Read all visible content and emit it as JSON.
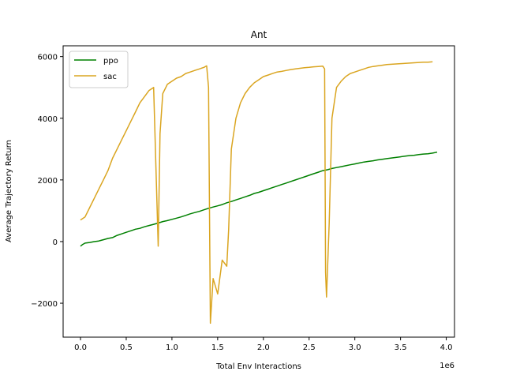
{
  "chart_data": {
    "type": "line",
    "title": "Ant",
    "xlabel": "Total Env Interactions",
    "ylabel": "Average Trajectory Return",
    "x_offset_label": "1e6",
    "xlim": [
      -0.19,
      4.09
    ],
    "ylim": [
      -3100,
      6350
    ],
    "x_ticks": [
      0.0,
      0.5,
      1.0,
      1.5,
      2.0,
      2.5,
      3.0,
      3.5,
      4.0
    ],
    "x_tick_labels": [
      "0.0",
      "0.5",
      "1.0",
      "1.5",
      "2.0",
      "2.5",
      "3.0",
      "3.5",
      "4.0"
    ],
    "y_ticks": [
      -2000,
      0,
      2000,
      4000,
      6000
    ],
    "y_tick_labels": [
      "−2000",
      "0",
      "2000",
      "4000",
      "6000"
    ],
    "grid": false,
    "legend_position": "top-left",
    "series": [
      {
        "name": "ppo",
        "color": "#008000",
        "points": [
          [
            0.0,
            -150
          ],
          [
            0.02,
            -100
          ],
          [
            0.05,
            -50
          ],
          [
            0.1,
            -30
          ],
          [
            0.15,
            0
          ],
          [
            0.2,
            20
          ],
          [
            0.25,
            60
          ],
          [
            0.3,
            100
          ],
          [
            0.35,
            130
          ],
          [
            0.4,
            200
          ],
          [
            0.45,
            250
          ],
          [
            0.5,
            300
          ],
          [
            0.55,
            350
          ],
          [
            0.6,
            400
          ],
          [
            0.65,
            430
          ],
          [
            0.7,
            480
          ],
          [
            0.75,
            520
          ],
          [
            0.8,
            560
          ],
          [
            0.85,
            600
          ],
          [
            0.9,
            650
          ],
          [
            0.95,
            680
          ],
          [
            1.0,
            720
          ],
          [
            1.05,
            760
          ],
          [
            1.1,
            800
          ],
          [
            1.15,
            850
          ],
          [
            1.2,
            900
          ],
          [
            1.25,
            940
          ],
          [
            1.3,
            980
          ],
          [
            1.35,
            1030
          ],
          [
            1.4,
            1080
          ],
          [
            1.45,
            1120
          ],
          [
            1.5,
            1160
          ],
          [
            1.55,
            1200
          ],
          [
            1.6,
            1260
          ],
          [
            1.65,
            1300
          ],
          [
            1.7,
            1350
          ],
          [
            1.75,
            1400
          ],
          [
            1.8,
            1450
          ],
          [
            1.85,
            1500
          ],
          [
            1.9,
            1560
          ],
          [
            1.95,
            1600
          ],
          [
            2.0,
            1650
          ],
          [
            2.05,
            1700
          ],
          [
            2.1,
            1750
          ],
          [
            2.15,
            1800
          ],
          [
            2.2,
            1850
          ],
          [
            2.25,
            1900
          ],
          [
            2.3,
            1950
          ],
          [
            2.35,
            2000
          ],
          [
            2.4,
            2050
          ],
          [
            2.45,
            2100
          ],
          [
            2.5,
            2150
          ],
          [
            2.55,
            2200
          ],
          [
            2.6,
            2250
          ],
          [
            2.65,
            2300
          ],
          [
            2.7,
            2330
          ],
          [
            2.75,
            2370
          ],
          [
            2.8,
            2400
          ],
          [
            2.85,
            2430
          ],
          [
            2.9,
            2460
          ],
          [
            2.95,
            2490
          ],
          [
            3.0,
            2520
          ],
          [
            3.05,
            2550
          ],
          [
            3.1,
            2580
          ],
          [
            3.15,
            2600
          ],
          [
            3.2,
            2620
          ],
          [
            3.25,
            2650
          ],
          [
            3.3,
            2670
          ],
          [
            3.35,
            2690
          ],
          [
            3.4,
            2710
          ],
          [
            3.45,
            2730
          ],
          [
            3.5,
            2750
          ],
          [
            3.55,
            2770
          ],
          [
            3.6,
            2790
          ],
          [
            3.65,
            2800
          ],
          [
            3.7,
            2820
          ],
          [
            3.75,
            2840
          ],
          [
            3.8,
            2850
          ],
          [
            3.85,
            2870
          ],
          [
            3.9,
            2900
          ]
        ]
      },
      {
        "name": "sac",
        "color": "#DAA520",
        "points": [
          [
            0.0,
            700
          ],
          [
            0.05,
            800
          ],
          [
            0.1,
            1100
          ],
          [
            0.15,
            1400
          ],
          [
            0.2,
            1700
          ],
          [
            0.25,
            2000
          ],
          [
            0.3,
            2300
          ],
          [
            0.35,
            2700
          ],
          [
            0.4,
            3000
          ],
          [
            0.45,
            3300
          ],
          [
            0.5,
            3600
          ],
          [
            0.55,
            3900
          ],
          [
            0.6,
            4200
          ],
          [
            0.65,
            4500
          ],
          [
            0.7,
            4700
          ],
          [
            0.75,
            4900
          ],
          [
            0.8,
            5000
          ],
          [
            0.85,
            -150
          ],
          [
            0.87,
            3500
          ],
          [
            0.9,
            4800
          ],
          [
            0.95,
            5100
          ],
          [
            1.0,
            5200
          ],
          [
            1.05,
            5300
          ],
          [
            1.1,
            5350
          ],
          [
            1.15,
            5450
          ],
          [
            1.2,
            5500
          ],
          [
            1.25,
            5550
          ],
          [
            1.3,
            5600
          ],
          [
            1.35,
            5650
          ],
          [
            1.38,
            5700
          ],
          [
            1.4,
            5000
          ],
          [
            1.42,
            -2650
          ],
          [
            1.45,
            -1200
          ],
          [
            1.5,
            -1700
          ],
          [
            1.55,
            -600
          ],
          [
            1.6,
            -800
          ],
          [
            1.62,
            400
          ],
          [
            1.65,
            3000
          ],
          [
            1.7,
            4000
          ],
          [
            1.75,
            4500
          ],
          [
            1.8,
            4800
          ],
          [
            1.85,
            5000
          ],
          [
            1.9,
            5150
          ],
          [
            1.95,
            5250
          ],
          [
            2.0,
            5350
          ],
          [
            2.05,
            5400
          ],
          [
            2.1,
            5450
          ],
          [
            2.15,
            5500
          ],
          [
            2.2,
            5520
          ],
          [
            2.25,
            5550
          ],
          [
            2.3,
            5580
          ],
          [
            2.35,
            5600
          ],
          [
            2.4,
            5620
          ],
          [
            2.45,
            5640
          ],
          [
            2.5,
            5650
          ],
          [
            2.55,
            5670
          ],
          [
            2.6,
            5680
          ],
          [
            2.65,
            5690
          ],
          [
            2.67,
            5600
          ],
          [
            2.68,
            -1000
          ],
          [
            2.69,
            -1800
          ],
          [
            2.72,
            600
          ],
          [
            2.75,
            4000
          ],
          [
            2.8,
            5000
          ],
          [
            2.85,
            5200
          ],
          [
            2.9,
            5350
          ],
          [
            2.95,
            5450
          ],
          [
            3.0,
            5500
          ],
          [
            3.05,
            5550
          ],
          [
            3.1,
            5600
          ],
          [
            3.15,
            5650
          ],
          [
            3.2,
            5680
          ],
          [
            3.25,
            5700
          ],
          [
            3.3,
            5720
          ],
          [
            3.35,
            5740
          ],
          [
            3.4,
            5750
          ],
          [
            3.45,
            5760
          ],
          [
            3.5,
            5770
          ],
          [
            3.55,
            5780
          ],
          [
            3.6,
            5790
          ],
          [
            3.65,
            5800
          ],
          [
            3.7,
            5810
          ],
          [
            3.75,
            5820
          ],
          [
            3.8,
            5820
          ],
          [
            3.85,
            5830
          ]
        ]
      }
    ]
  }
}
